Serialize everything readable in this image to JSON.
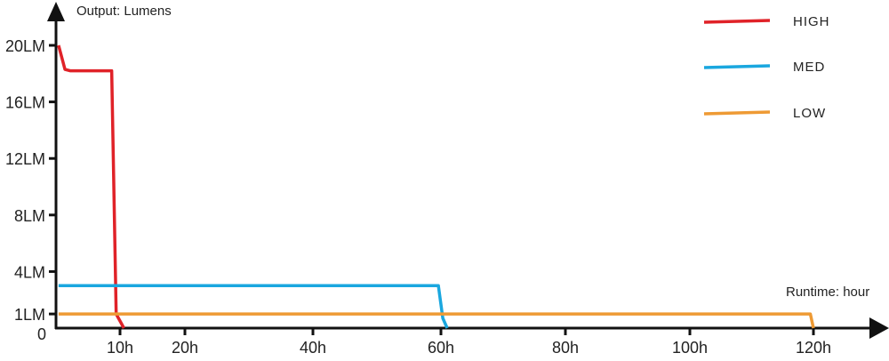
{
  "chart_data": {
    "type": "line",
    "ylabel": "Output: Lumens",
    "xlabel": "Runtime: hour",
    "y_ticks": [
      {
        "value": 0,
        "label": "0"
      },
      {
        "value": 1,
        "label": "1LM"
      },
      {
        "value": 4,
        "label": "4LM"
      },
      {
        "value": 8,
        "label": "8LM"
      },
      {
        "value": 12,
        "label": "12LM"
      },
      {
        "value": 16,
        "label": "16LM"
      },
      {
        "value": 20,
        "label": "20LM"
      }
    ],
    "x_ticks": [
      {
        "value": 10,
        "label": "10h"
      },
      {
        "value": 20,
        "label": "20h"
      },
      {
        "value": 40,
        "label": "40h"
      },
      {
        "value": 60,
        "label": "60h"
      },
      {
        "value": 80,
        "label": "80h"
      },
      {
        "value": 100,
        "label": "100h"
      },
      {
        "value": 120,
        "label": "120h"
      }
    ],
    "xlim": [
      0,
      120
    ],
    "ylim": [
      0,
      20
    ],
    "grid": false,
    "legend_placement": "top-right",
    "series": [
      {
        "name": "HIGH",
        "color": "#e02228",
        "points": [
          [
            0.4,
            20
          ],
          [
            1.4,
            18.3
          ],
          [
            2.2,
            18.2
          ],
          [
            8.7,
            18.2
          ],
          [
            9.4,
            1
          ],
          [
            10.6,
            0
          ]
        ]
      },
      {
        "name": "MED",
        "color": "#1aa7df",
        "points": [
          [
            0.4,
            3
          ],
          [
            59.6,
            3
          ],
          [
            60.3,
            0.7
          ],
          [
            61,
            0
          ]
        ]
      },
      {
        "name": "LOW",
        "color": "#ee9a34",
        "points": [
          [
            0.4,
            1
          ],
          [
            119.5,
            1
          ],
          [
            120.3,
            0
          ]
        ]
      }
    ]
  }
}
